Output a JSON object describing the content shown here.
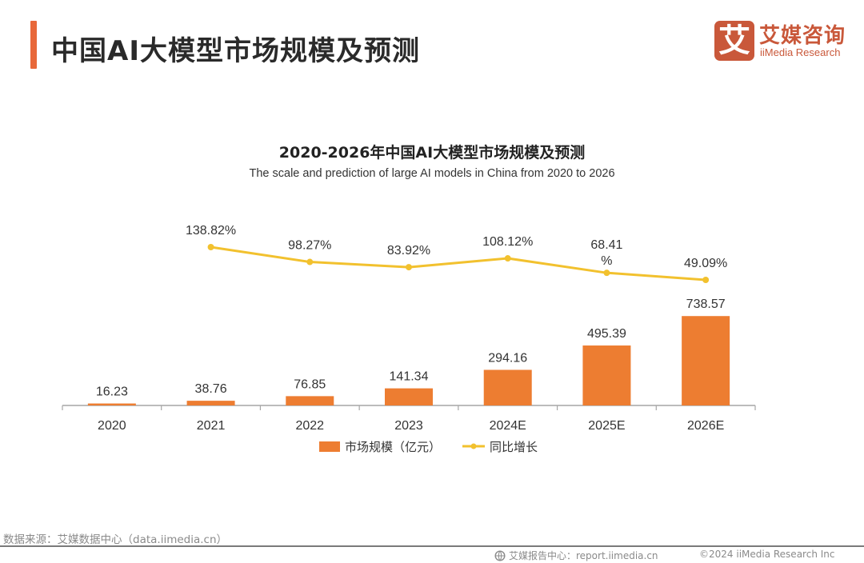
{
  "header": {
    "title": "中国AI大模型市场规模及预测",
    "logo": {
      "mark": "艾",
      "name_cn": "艾媒咨询",
      "name_en": "iiMedia Research",
      "color": "#c9583a"
    },
    "accent_color": "#e8683a"
  },
  "chart_data": {
    "type": "bar",
    "title": "2020-2026年中国AI大模型市场规模及预测",
    "subtitle": "The scale and prediction of large AI models in China from 2020 to 2026",
    "categories": [
      "2020",
      "2021",
      "2022",
      "2023",
      "2024E",
      "2025E",
      "2026E"
    ],
    "series": [
      {
        "name": "市场规模（亿元）",
        "type": "bar",
        "color": "#ed7d31",
        "values": [
          16.23,
          38.76,
          76.85,
          141.34,
          294.16,
          495.39,
          738.57
        ],
        "labels": [
          "16.23",
          "38.76",
          "76.85",
          "141.34",
          "294.16",
          "495.39",
          "738.57"
        ]
      },
      {
        "name": "同比增长",
        "type": "line",
        "color": "#f2c12e",
        "values": [
          null,
          138.82,
          98.27,
          83.92,
          108.12,
          68.41,
          49.09
        ],
        "labels": [
          null,
          "138.82%",
          "98.27%",
          "83.92%",
          "108.12%",
          "68.41\n%",
          "49.09%"
        ],
        "unit": "%"
      }
    ],
    "xlabel": "",
    "ylabel": "",
    "ylim": [
      0,
      740
    ],
    "y2lim": [
      0,
      140
    ],
    "grid": false,
    "legend": "bottom-center"
  },
  "footer": {
    "source": "数据来源：艾媒数据中心（data.iimedia.cn）",
    "report_center": "艾媒报告中心：report.iimedia.cn",
    "copyright": "©2024  iiMedia Research  Inc"
  }
}
